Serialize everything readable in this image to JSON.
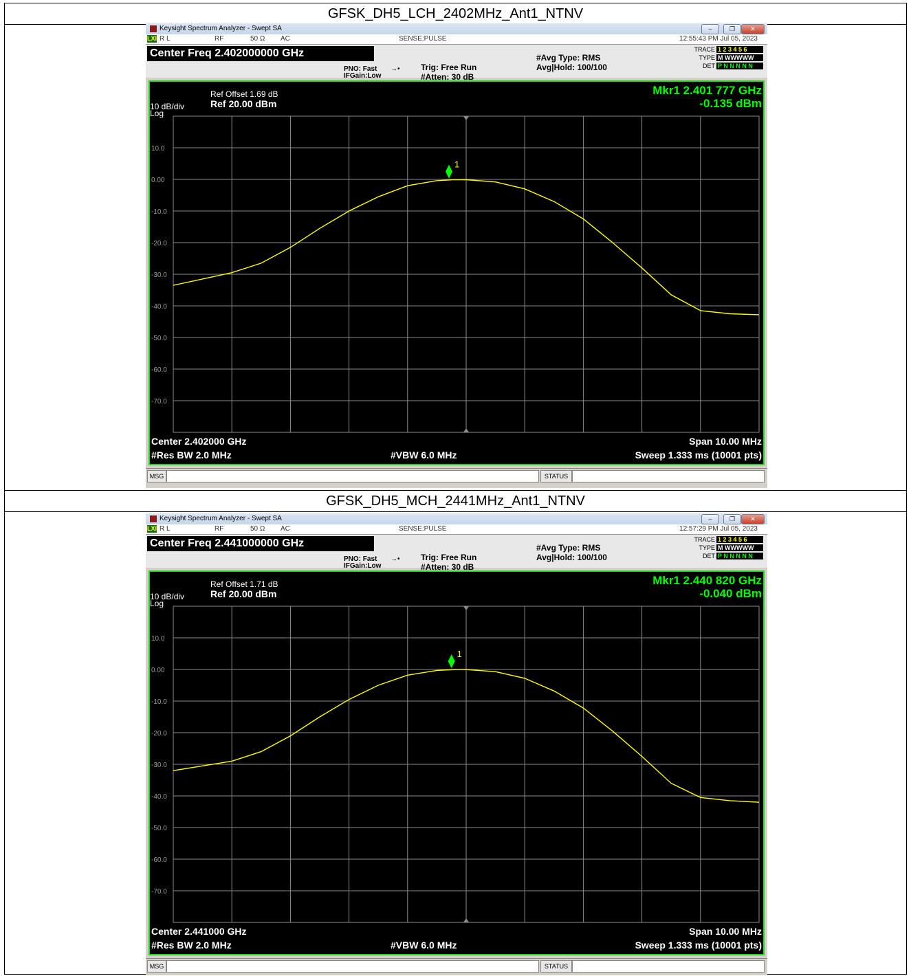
{
  "colors": {
    "trace": "#ffff00",
    "marker": "#00ff00",
    "grid": "#8c8c8c",
    "frame": "#1fd41f",
    "screen_bg": "#000000"
  },
  "panels": [
    {
      "caption": "GFSK_DH5_LCH_2402MHz_Ant1_NTNV",
      "window_title": "Keysight Spectrum Analyzer - Swept SA",
      "status": {
        "rl": "R L",
        "rf": "RF",
        "impedance": "50 Ω",
        "coupling": "AC",
        "sense": "SENSE:PULSE",
        "datetime": "12:55:43 PM Jul 05, 2023"
      },
      "center_freq_label": "Center Freq 2.402000000 GHz",
      "pno": "PNO: Fast",
      "ifgain": "IFGain:Low",
      "trig": "Trig: Free Run",
      "atten": "#Atten: 30 dB",
      "avg_type": "#Avg Type: RMS",
      "avg_hold": "Avg|Hold: 100/100",
      "trace_labels": {
        "trace": "TRACE",
        "type": "TYPE",
        "det": "DET",
        "trace_val": "1 2 3 4 5 6",
        "type_val": "M WWWWW",
        "det_val": "P N N N N N"
      },
      "ref_offset": "Ref Offset 1.69 dB",
      "ref_level": "Ref 20.00 dBm",
      "scale": "10 dB/div",
      "scale_type": "Log",
      "marker_freq": "Mkr1 2.401 777 GHz",
      "marker_level": "-0.135 dBm",
      "marker_label": "1",
      "center_label": "Center 2.402000 GHz",
      "span_label": "Span 10.00 MHz",
      "rbw_label": "#Res BW 2.0 MHz",
      "vbw_label": "#VBW 6.0 MHz",
      "sweep_label": "Sweep  1.333 ms (10001 pts)",
      "msg_label": "MSG",
      "status_label": "STATUS",
      "chart_data": {
        "type": "line",
        "x_unit": "MHz",
        "y_unit": "dBm",
        "xlim": [
          2397.0,
          2407.0
        ],
        "ylim": [
          -80,
          20
        ],
        "y_ticks": [
          10.0,
          0.0,
          -10.0,
          -20.0,
          -30.0,
          -40.0,
          -50.0,
          -60.0,
          -70.0
        ],
        "y_tick_labels": [
          "10.0",
          "0.00",
          "-10.0",
          "-20.0",
          "-30.0",
          "-40.0",
          "-50.0",
          "-60.0",
          "-70.0"
        ],
        "grid": true,
        "series": [
          {
            "x": [
              2397.0,
              2397.5,
              2398.0,
              2398.5,
              2399.0,
              2399.5,
              2400.0,
              2400.5,
              2401.0,
              2401.5,
              2401.777,
              2402.0,
              2402.5,
              2403.0,
              2403.5,
              2404.0,
              2404.5,
              2405.0,
              2405.5,
              2406.0,
              2406.5,
              2407.0
            ],
            "y": [
              -33.5,
              -31.5,
              -29.5,
              -26.5,
              -21.5,
              -15.5,
              -10.0,
              -5.5,
              -2.0,
              -0.4,
              -0.135,
              -0.1,
              -0.8,
              -3.0,
              -7.0,
              -12.5,
              -20.0,
              -28.0,
              -36.5,
              -41.5,
              -42.5,
              -42.8
            ]
          }
        ],
        "marker": {
          "x": 2401.777,
          "y": -0.135
        }
      }
    },
    {
      "caption": "GFSK_DH5_MCH_2441MHz_Ant1_NTNV",
      "window_title": "Keysight Spectrum Analyzer - Swept SA",
      "status": {
        "rl": "R L",
        "rf": "RF",
        "impedance": "50 Ω",
        "coupling": "AC",
        "sense": "SENSE:PULSE",
        "datetime": "12:57:29 PM Jul 05, 2023"
      },
      "center_freq_label": "Center Freq 2.441000000 GHz",
      "pno": "PNO: Fast",
      "ifgain": "IFGain:Low",
      "trig": "Trig: Free Run",
      "atten": "#Atten: 30 dB",
      "avg_type": "#Avg Type: RMS",
      "avg_hold": "Avg|Hold: 100/100",
      "trace_labels": {
        "trace": "TRACE",
        "type": "TYPE",
        "det": "DET",
        "trace_val": "1 2 3 4 5 6",
        "type_val": "M WWWWW",
        "det_val": "P N N N N N"
      },
      "ref_offset": "Ref Offset 1.71 dB",
      "ref_level": "Ref 20.00 dBm",
      "scale": "10 dB/div",
      "scale_type": "Log",
      "marker_freq": "Mkr1 2.440 820 GHz",
      "marker_level": "-0.040 dBm",
      "marker_label": "1",
      "center_label": "Center 2.441000 GHz",
      "span_label": "Span 10.00 MHz",
      "rbw_label": "#Res BW 2.0 MHz",
      "vbw_label": "#VBW 6.0 MHz",
      "sweep_label": "Sweep  1.333 ms (10001 pts)",
      "msg_label": "MSG",
      "status_label": "STATUS",
      "chart_data": {
        "type": "line",
        "x_unit": "MHz",
        "y_unit": "dBm",
        "xlim": [
          2436.0,
          2446.0
        ],
        "ylim": [
          -80,
          20
        ],
        "y_ticks": [
          10.0,
          0.0,
          -10.0,
          -20.0,
          -30.0,
          -40.0,
          -50.0,
          -60.0,
          -70.0
        ],
        "y_tick_labels": [
          "10.0",
          "0.00",
          "-10.0",
          "-20.0",
          "-30.0",
          "-40.0",
          "-50.0",
          "-60.0",
          "-70.0"
        ],
        "grid": true,
        "series": [
          {
            "x": [
              2436.0,
              2436.5,
              2437.0,
              2437.5,
              2438.0,
              2438.5,
              2439.0,
              2439.5,
              2440.0,
              2440.5,
              2440.82,
              2441.0,
              2441.5,
              2442.0,
              2442.5,
              2443.0,
              2443.5,
              2444.0,
              2444.5,
              2445.0,
              2445.5,
              2446.0
            ],
            "y": [
              -32.0,
              -30.5,
              -29.0,
              -26.0,
              -21.0,
              -15.0,
              -9.5,
              -5.0,
              -1.8,
              -0.3,
              -0.04,
              -0.05,
              -0.7,
              -2.8,
              -6.8,
              -12.2,
              -19.5,
              -27.5,
              -36.0,
              -40.5,
              -41.5,
              -42.0
            ]
          }
        ],
        "marker": {
          "x": 2440.82,
          "y": -0.04
        }
      }
    }
  ]
}
